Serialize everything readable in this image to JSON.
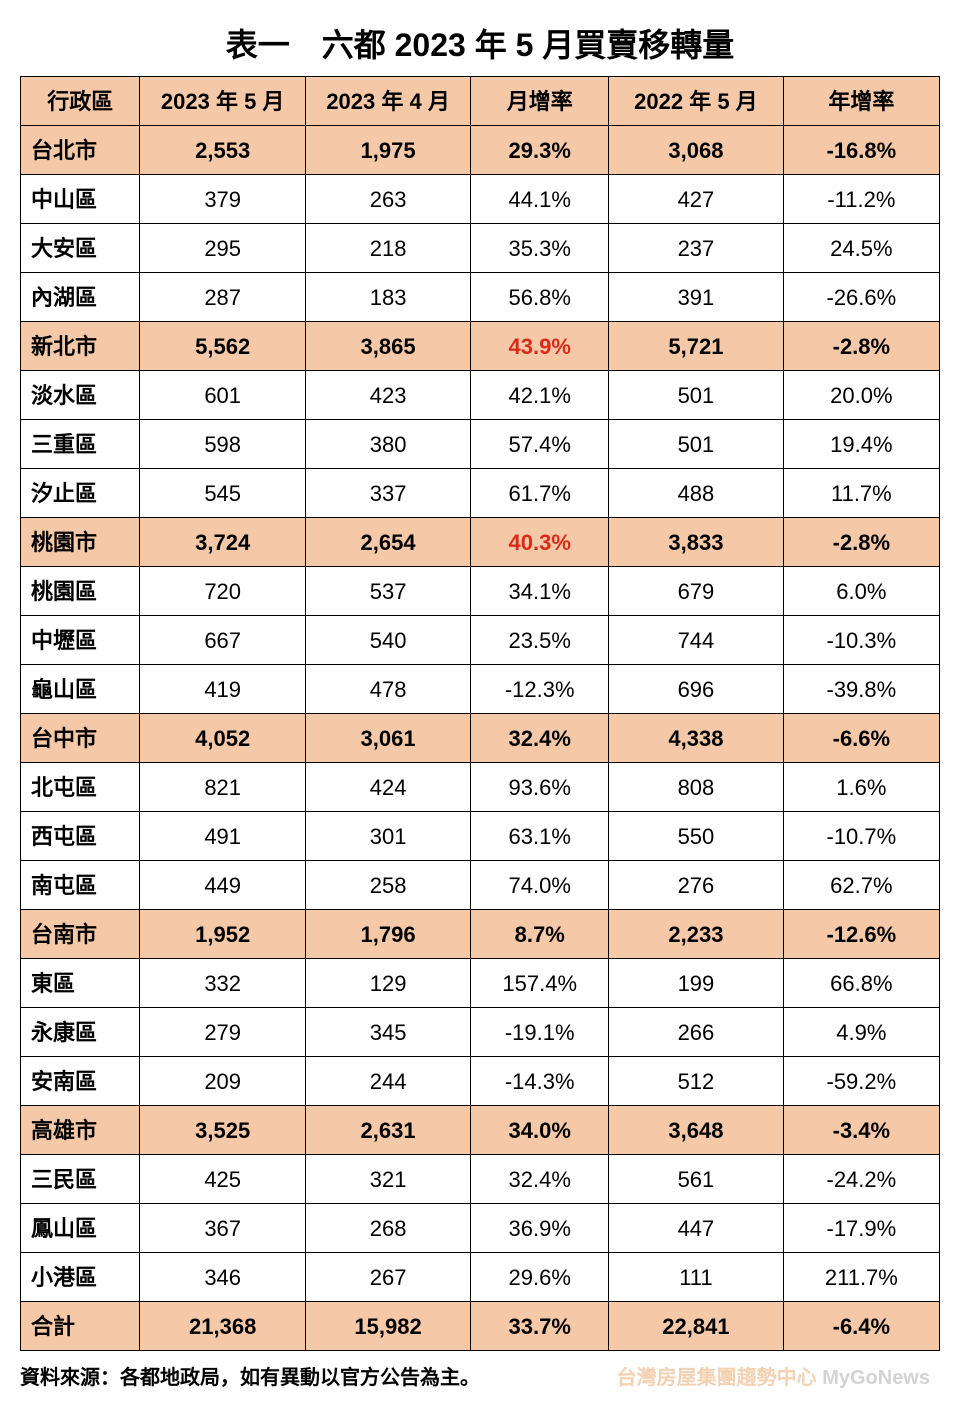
{
  "title": "表一　六都 2023 年 5 月買賣移轉量",
  "columns": [
    "行政區",
    "2023 年 5 月",
    "2023 年 4 月",
    "月增率",
    "2022 年 5 月",
    "年增率"
  ],
  "colors": {
    "header_bg": "#f5c9a8",
    "city_bg": "#f5c9a8",
    "border": "#000000",
    "text": "#000000",
    "highlight_red": "#d82c1a"
  },
  "typography": {
    "title_fontsize": 32,
    "cell_fontsize": 22,
    "footer_fontsize": 20,
    "font_family": "Microsoft JhengHei"
  },
  "rows": [
    {
      "type": "city",
      "region": "台北市",
      "c2": "2,553",
      "c3": "1,975",
      "c4": "29.3%",
      "c5": "3,068",
      "c6": "-16.8%"
    },
    {
      "type": "district",
      "region": "中山區",
      "c2": "379",
      "c3": "263",
      "c4": "44.1%",
      "c5": "427",
      "c6": "-11.2%"
    },
    {
      "type": "district",
      "region": "大安區",
      "c2": "295",
      "c3": "218",
      "c4": "35.3%",
      "c5": "237",
      "c6": "24.5%"
    },
    {
      "type": "district",
      "region": "內湖區",
      "c2": "287",
      "c3": "183",
      "c4": "56.8%",
      "c5": "391",
      "c6": "-26.6%"
    },
    {
      "type": "city",
      "region": "新北市",
      "c2": "5,562",
      "c3": "3,865",
      "c4": "43.9%",
      "c4_red": true,
      "c5": "5,721",
      "c6": "-2.8%"
    },
    {
      "type": "district",
      "region": "淡水區",
      "c2": "601",
      "c3": "423",
      "c4": "42.1%",
      "c5": "501",
      "c6": "20.0%"
    },
    {
      "type": "district",
      "region": "三重區",
      "c2": "598",
      "c3": "380",
      "c4": "57.4%",
      "c5": "501",
      "c6": "19.4%"
    },
    {
      "type": "district",
      "region": "汐止區",
      "c2": "545",
      "c3": "337",
      "c4": "61.7%",
      "c5": "488",
      "c6": "11.7%"
    },
    {
      "type": "city",
      "region": "桃園市",
      "c2": "3,724",
      "c3": "2,654",
      "c4": "40.3%",
      "c4_red": true,
      "c5": "3,833",
      "c6": "-2.8%"
    },
    {
      "type": "district",
      "region": "桃園區",
      "c2": "720",
      "c3": "537",
      "c4": "34.1%",
      "c5": "679",
      "c6": "6.0%"
    },
    {
      "type": "district",
      "region": "中壢區",
      "c2": "667",
      "c3": "540",
      "c4": "23.5%",
      "c5": "744",
      "c6": "-10.3%"
    },
    {
      "type": "district",
      "region": "龜山區",
      "c2": "419",
      "c3": "478",
      "c4": "-12.3%",
      "c5": "696",
      "c6": "-39.8%"
    },
    {
      "type": "city",
      "region": "台中市",
      "c2": "4,052",
      "c3": "3,061",
      "c4": "32.4%",
      "c5": "4,338",
      "c6": "-6.6%"
    },
    {
      "type": "district",
      "region": "北屯區",
      "c2": "821",
      "c3": "424",
      "c4": "93.6%",
      "c5": "808",
      "c6": "1.6%"
    },
    {
      "type": "district",
      "region": "西屯區",
      "c2": "491",
      "c3": "301",
      "c4": "63.1%",
      "c5": "550",
      "c6": "-10.7%"
    },
    {
      "type": "district",
      "region": "南屯區",
      "c2": "449",
      "c3": "258",
      "c4": "74.0%",
      "c5": "276",
      "c6": "62.7%"
    },
    {
      "type": "city",
      "region": "台南市",
      "c2": "1,952",
      "c3": "1,796",
      "c4": "8.7%",
      "c5": "2,233",
      "c6": "-12.6%"
    },
    {
      "type": "district",
      "region": "東區",
      "c2": "332",
      "c3": "129",
      "c4": "157.4%",
      "c5": "199",
      "c6": "66.8%"
    },
    {
      "type": "district",
      "region": "永康區",
      "c2": "279",
      "c3": "345",
      "c4": "-19.1%",
      "c5": "266",
      "c6": "4.9%"
    },
    {
      "type": "district",
      "region": "安南區",
      "c2": "209",
      "c3": "244",
      "c4": "-14.3%",
      "c5": "512",
      "c6": "-59.2%"
    },
    {
      "type": "city",
      "region": "高雄市",
      "c2": "3,525",
      "c3": "2,631",
      "c4": "34.0%",
      "c5": "3,648",
      "c6": "-3.4%"
    },
    {
      "type": "district",
      "region": "三民區",
      "c2": "425",
      "c3": "321",
      "c4": "32.4%",
      "c5": "561",
      "c6": "-24.2%"
    },
    {
      "type": "district",
      "region": "鳳山區",
      "c2": "367",
      "c3": "268",
      "c4": "36.9%",
      "c5": "447",
      "c6": "-17.9%"
    },
    {
      "type": "district",
      "region": "小港區",
      "c2": "346",
      "c3": "267",
      "c4": "29.6%",
      "c5": "111",
      "c6": "211.7%"
    },
    {
      "type": "total",
      "region": "合計",
      "c2": "21,368",
      "c3": "15,982",
      "c4": "33.7%",
      "c5": "22,841",
      "c6": "-6.4%"
    }
  ],
  "footer": "資料來源：各都地政局，如有異動以官方公告為主。",
  "watermark": {
    "brand": "MyGoNews",
    "sub": "台灣房屋集團趨勢中心"
  }
}
